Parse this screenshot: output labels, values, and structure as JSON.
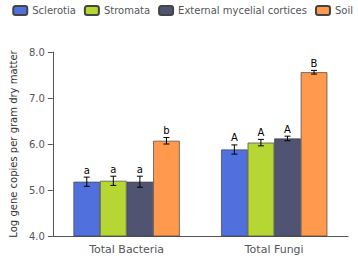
{
  "chart_data": {
    "type": "bar",
    "categories": [
      "Total Bacteria",
      "Total Fungi"
    ],
    "series": [
      {
        "name": "Sclerotia",
        "values": [
          5.18,
          5.88
        ],
        "errors": [
          0.1,
          0.1
        ],
        "annotations": [
          "a",
          "A"
        ]
      },
      {
        "name": "Stromata",
        "values": [
          5.2,
          6.03
        ],
        "errors": [
          0.1,
          0.07
        ],
        "annotations": [
          "a",
          "A"
        ]
      },
      {
        "name": "External mycelial cortices",
        "values": [
          5.18,
          6.12
        ],
        "errors": [
          0.12,
          0.05
        ],
        "annotations": [
          "a",
          "A"
        ]
      },
      {
        "name": "Soil",
        "values": [
          6.07,
          7.56
        ],
        "errors": [
          0.07,
          0.04
        ],
        "annotations": [
          "b",
          "B"
        ]
      }
    ],
    "ylabel": "Log gene copies per gram dry matter",
    "ylim": [
      4.0,
      8.0
    ],
    "yticks": [
      {
        "value": 4.0,
        "label": "4.0"
      },
      {
        "value": 5.0,
        "label": "5.0"
      },
      {
        "value": 6.0,
        "label": "6.0"
      },
      {
        "value": 7.0,
        "label": "7.0"
      },
      {
        "value": 8.0,
        "label": "8.0"
      }
    ],
    "grid": false,
    "legend": "upper right"
  }
}
